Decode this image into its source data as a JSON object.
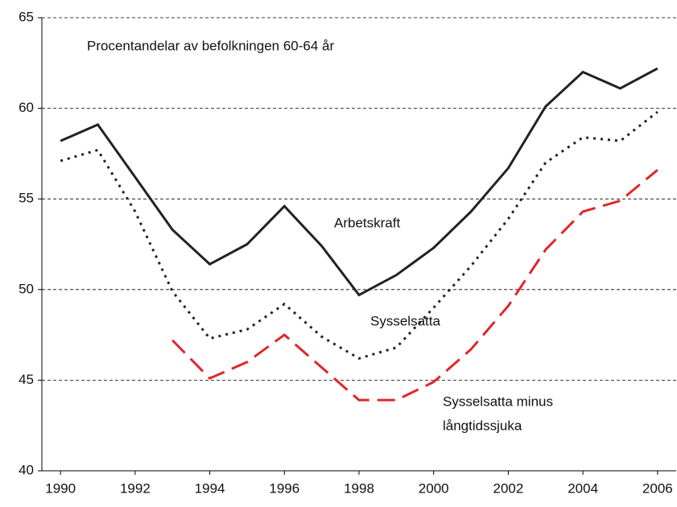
{
  "chart_data": {
    "type": "line",
    "annotations": [
      "Procentandelar av befolkningen 60-64 år",
      "Arbetskraft",
      "Sysselsatta",
      "Sysselsatta minus",
      "långtidssjuka"
    ],
    "x": [
      1990,
      1991,
      1992,
      1993,
      1994,
      1995,
      1996,
      1997,
      1998,
      1999,
      2000,
      2001,
      2002,
      2003,
      2004,
      2005,
      2006
    ],
    "xlim": [
      1989.5,
      2006.5
    ],
    "xticks": [
      1990,
      1992,
      1994,
      1996,
      1998,
      2000,
      2002,
      2004,
      2006
    ],
    "ylim": [
      40,
      65
    ],
    "yticks": [
      40,
      45,
      50,
      55,
      60,
      65
    ],
    "grid": true,
    "series": [
      {
        "name": "Arbetskraft",
        "color": "#222222",
        "dash": "solid",
        "values": [
          58.2,
          59.1,
          56.2,
          53.3,
          51.4,
          52.5,
          54.6,
          52.4,
          49.7,
          50.8,
          52.3,
          54.3,
          56.7,
          60.1,
          62.0,
          61.1,
          62.2
        ]
      },
      {
        "name": "Sysselsatta",
        "color": "#222222",
        "dash": "dotted",
        "values": [
          57.1,
          57.7,
          54.3,
          49.9,
          47.3,
          47.8,
          49.2,
          47.4,
          46.2,
          46.8,
          49.0,
          51.3,
          53.9,
          57.0,
          58.4,
          58.2,
          59.8
        ]
      },
      {
        "name": "Sysselsatta minus långtidssjuka",
        "color": "#e0262b",
        "dash": "dashed",
        "values": [
          null,
          null,
          null,
          47.2,
          45.1,
          46.0,
          47.5,
          45.7,
          43.9,
          43.9,
          44.9,
          46.7,
          49.1,
          52.2,
          54.3,
          54.9,
          56.6
        ]
      }
    ]
  }
}
